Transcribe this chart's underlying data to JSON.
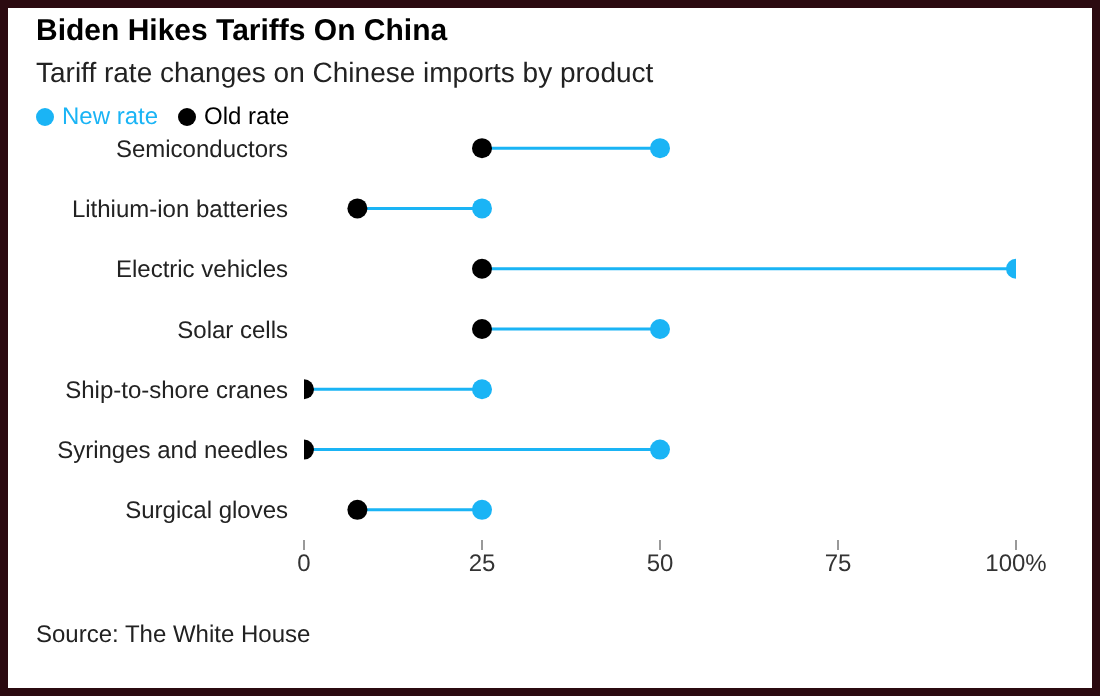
{
  "chart_data": {
    "type": "scatter",
    "orientation": "horizontal",
    "title": "Biden Hikes Tariffs On China",
    "subtitle": "Tariff rate changes on Chinese imports by product",
    "categories": [
      "Semiconductors",
      "Lithium-ion batteries",
      "Electric vehicles",
      "Solar cells",
      "Ship-to-shore cranes",
      "Syringes and needles",
      "Surgical gloves"
    ],
    "series": [
      {
        "name": "Old rate",
        "color": "#000000",
        "values": [
          25,
          7.5,
          25,
          25,
          0,
          0,
          7.5
        ]
      },
      {
        "name": "New rate",
        "color": "#1ab4f5",
        "values": [
          50,
          25,
          100,
          50,
          25,
          50,
          25
        ]
      }
    ],
    "xlim": [
      0,
      100
    ],
    "xticks": [
      0,
      25,
      50,
      75,
      {
        "value": 100,
        "label": "100%"
      }
    ],
    "marker": "circle",
    "legend": "top left",
    "grid": false,
    "annotations": [
      "Source: The White House"
    ]
  }
}
